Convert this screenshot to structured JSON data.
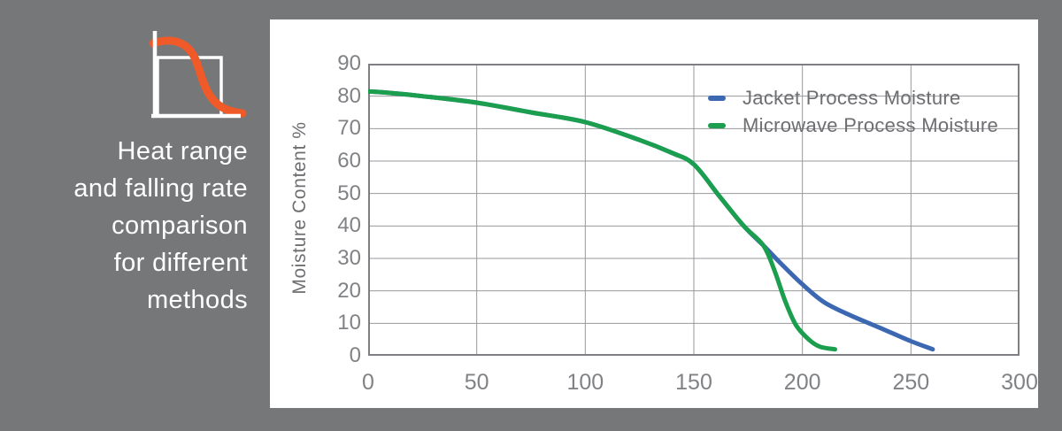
{
  "sidebar": {
    "caption_lines": [
      "Heat range",
      "and falling rate",
      "comparison",
      "for different",
      "methods"
    ],
    "icon": "falling-rate-curve-icon",
    "icon_color": "#f05a28"
  },
  "chart_data": {
    "type": "line",
    "title": "",
    "xlabel": "",
    "ylabel": "Moisture Content %",
    "xlim": [
      0,
      300
    ],
    "ylim": [
      0,
      90
    ],
    "x_ticks": [
      0,
      50,
      100,
      150,
      200,
      250,
      300
    ],
    "y_ticks": [
      0,
      10,
      20,
      30,
      40,
      50,
      60,
      70,
      80,
      90
    ],
    "grid": true,
    "legend_position": "inside-top-right",
    "series": [
      {
        "name": "Jacket Process Moisture",
        "color": "#3c68b2",
        "x": [
          0,
          10,
          25,
          50,
          75,
          100,
          125,
          140,
          150,
          162,
          173,
          182,
          190,
          200,
          210,
          222,
          235,
          250,
          260
        ],
        "y": [
          81.5,
          81,
          80,
          78,
          75,
          72,
          66.5,
          62.5,
          59,
          49,
          40,
          34,
          28.5,
          22,
          16.5,
          12.5,
          8.8,
          4.5,
          2
        ]
      },
      {
        "name": "Microwave Process Moisture",
        "color": "#1b9e4d",
        "x": [
          0,
          10,
          25,
          50,
          75,
          100,
          125,
          140,
          150,
          162,
          173,
          182,
          187,
          192,
          197,
          203,
          208,
          215
        ],
        "y": [
          81.5,
          81,
          80,
          78,
          75,
          72,
          66.5,
          62.5,
          59,
          49,
          40,
          34,
          26.5,
          17,
          9.5,
          5,
          2.8,
          2
        ]
      }
    ]
  },
  "colors": {
    "background": "#767779",
    "panel": "#ffffff",
    "grid": "#97999c",
    "plot_border": "#7d7f82",
    "tick_text": "#808285",
    "label_text": "#6d6e71",
    "caption_text": "#ffffff",
    "accent_orange": "#f05a28"
  }
}
